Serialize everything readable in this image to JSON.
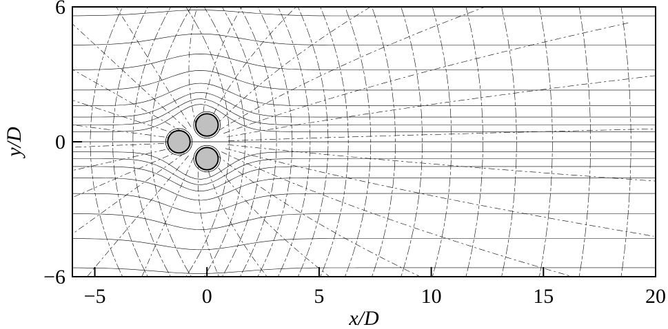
{
  "axes": {
    "xlabel": "x/D",
    "ylabel": "y/D",
    "xlim": [
      -6,
      20
    ],
    "ylim": [
      -6,
      6
    ],
    "xticks": [
      -5,
      0,
      5,
      10,
      15,
      20
    ],
    "yticks": [
      -6,
      0,
      6
    ],
    "xtick_labels": [
      "−5",
      "0",
      "5",
      "10",
      "15",
      "20"
    ],
    "ytick_labels": [
      "−6",
      "0",
      "6"
    ]
  },
  "cylinders": [
    {
      "x": -1.25,
      "y": 0.0,
      "d": 1.0
    },
    {
      "x": 0.0,
      "y": 0.75,
      "d": 1.0
    },
    {
      "x": 0.0,
      "y": -0.75,
      "d": 1.0
    }
  ]
}
